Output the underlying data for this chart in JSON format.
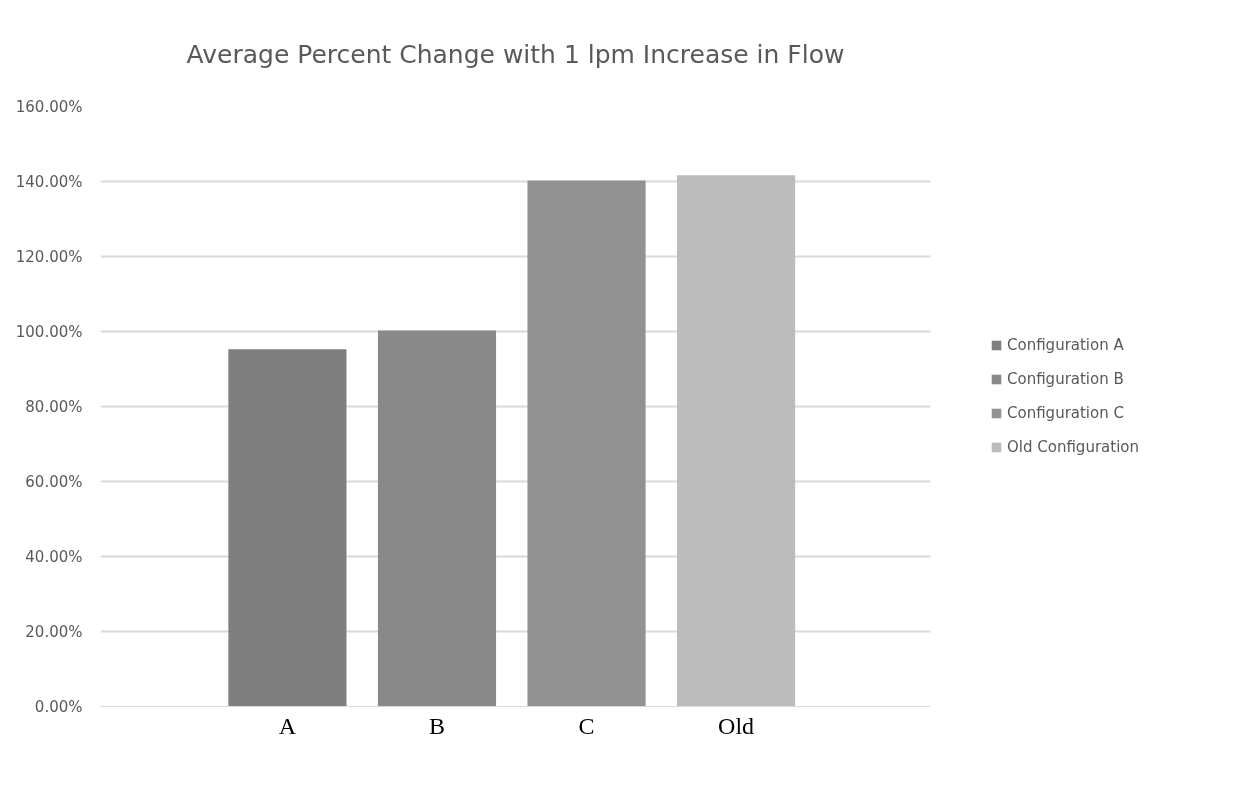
{
  "chart_data": {
    "type": "bar",
    "title": "Average Percent Change with 1 lpm Increase in Flow",
    "categories": [
      "A",
      "B",
      "C",
      "Old"
    ],
    "series": [
      {
        "name": "Configuration A",
        "color": "#7f7f7f",
        "values": [
          95.3,
          null,
          null,
          null
        ]
      },
      {
        "name": "Configuration B",
        "color": "#898989",
        "values": [
          null,
          100.3,
          null,
          null
        ]
      },
      {
        "name": "Configuration C",
        "color": "#929292",
        "values": [
          null,
          null,
          140.3,
          null
        ]
      },
      {
        "name": "Old Configuration",
        "color": "#bcbcbc",
        "values": [
          null,
          null,
          null,
          141.7
        ]
      }
    ],
    "ylim": [
      0,
      160
    ],
    "yticks": [
      {
        "value": 0,
        "label": "0.00%"
      },
      {
        "value": 20,
        "label": "20.00%"
      },
      {
        "value": 40,
        "label": "40.00%"
      },
      {
        "value": 60,
        "label": "60.00%"
      },
      {
        "value": 80,
        "label": "80.00%"
      },
      {
        "value": 100,
        "label": "100.00%"
      },
      {
        "value": 120,
        "label": "120.00%"
      },
      {
        "value": 140,
        "label": "140.00%"
      },
      {
        "value": 160,
        "label": "160.00%"
      }
    ],
    "grid": "y",
    "legend": "right"
  }
}
